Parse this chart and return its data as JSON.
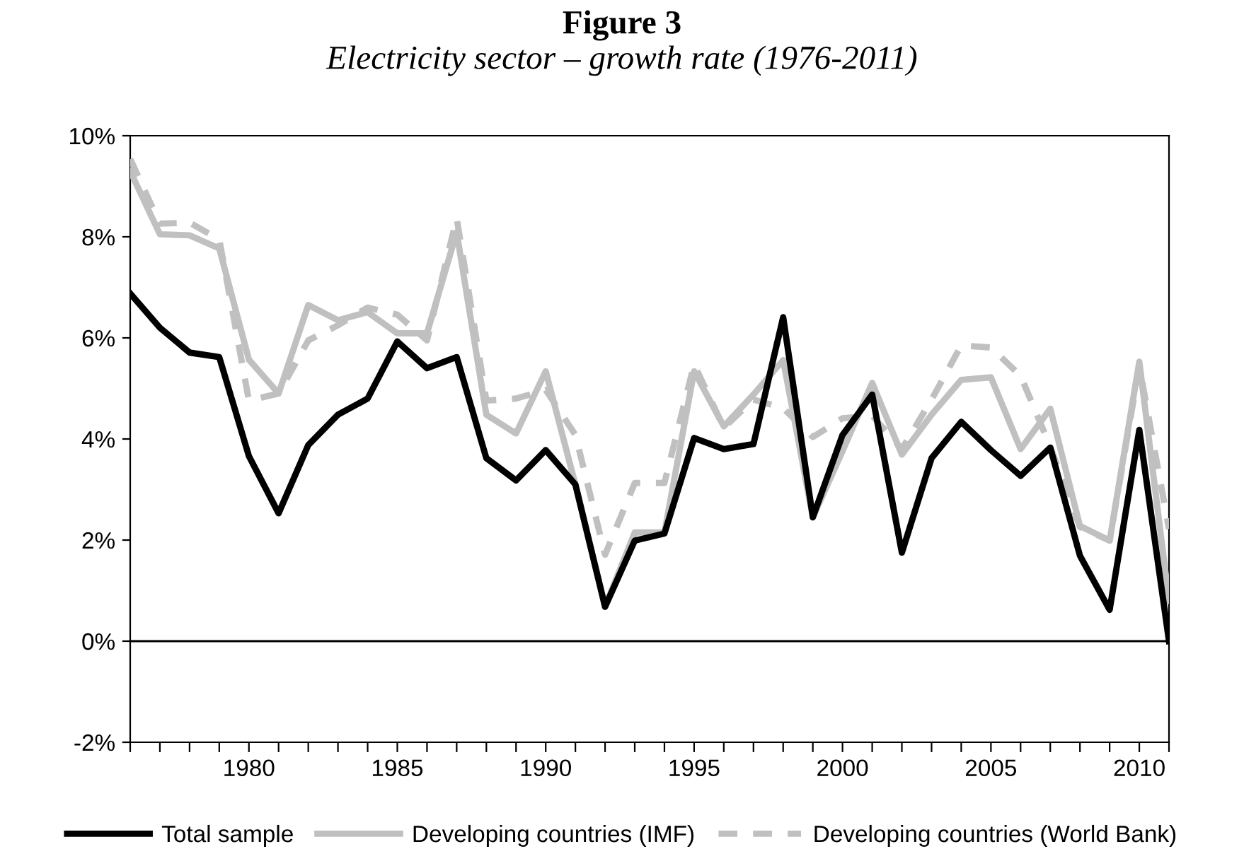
{
  "chart_data": {
    "type": "line",
    "title": "Figure 3",
    "subtitle": "Electricity sector – growth rate (1976-2011)",
    "x": [
      1976,
      1977,
      1978,
      1979,
      1980,
      1981,
      1982,
      1983,
      1984,
      1985,
      1986,
      1987,
      1988,
      1989,
      1990,
      1991,
      1992,
      1993,
      1994,
      1995,
      1996,
      1997,
      1998,
      1999,
      2000,
      2001,
      2002,
      2003,
      2004,
      2005,
      2006,
      2007,
      2008,
      2009,
      2010,
      2011
    ],
    "series": [
      {
        "name": "Total sample",
        "color": "#000000",
        "line_style": "solid",
        "values": [
          6.88,
          6.2,
          5.71,
          5.62,
          3.66,
          2.53,
          3.88,
          4.48,
          4.8,
          5.93,
          5.4,
          5.62,
          3.62,
          3.18,
          3.78,
          3.1,
          0.68,
          1.99,
          2.13,
          4.02,
          3.8,
          3.9,
          6.41,
          2.45,
          4.08,
          4.88,
          1.75,
          3.62,
          4.34,
          3.78,
          3.27,
          3.83,
          1.69,
          0.62,
          4.18,
          0
        ]
      },
      {
        "name": "Developing countries (IMF)",
        "color": "#c0c0c0",
        "line_style": "solid",
        "values": [
          9.3,
          8.05,
          8.03,
          7.77,
          5.57,
          4.9,
          6.65,
          6.35,
          6.51,
          6.09,
          6.09,
          8.09,
          4.48,
          4.11,
          5.34,
          3.1,
          0.68,
          2.15,
          2.15,
          5.34,
          4.25,
          4.88,
          5.56,
          2.45,
          3.76,
          5.11,
          3.69,
          4.48,
          5.17,
          5.22,
          3.8,
          4.6,
          2.28,
          1.99,
          5.53,
          0.8
        ]
      },
      {
        "name": "Developing countries (World Bank)",
        "color": "#c0c0c0",
        "line_style": "dashed",
        "values": [
          9.54,
          8.26,
          8.28,
          7.95,
          4.76,
          4.9,
          5.95,
          6.25,
          6.6,
          6.46,
          5.95,
          8.37,
          4.76,
          4.8,
          4.97,
          4.08,
          1.71,
          3.13,
          3.13,
          5.48,
          4.22,
          4.78,
          4.61,
          4.04,
          4.41,
          4.46,
          3.8,
          4.78,
          5.85,
          5.81,
          5.25,
          3.85,
          2.26,
          1.99,
          5.44,
          2.22
        ]
      }
    ],
    "xlim": [
      1976,
      2011
    ],
    "xticks": [
      {
        "value": 1976,
        "label": null
      },
      {
        "value": 1977,
        "label": null
      },
      {
        "value": 1978,
        "label": null
      },
      {
        "value": 1979,
        "label": null
      },
      1980,
      {
        "value": 1981,
        "label": null
      },
      {
        "value": 1982,
        "label": null
      },
      {
        "value": 1983,
        "label": null
      },
      {
        "value": 1984,
        "label": null
      },
      1985,
      {
        "value": 1986,
        "label": null
      },
      {
        "value": 1987,
        "label": null
      },
      {
        "value": 1988,
        "label": null
      },
      {
        "value": 1989,
        "label": null
      },
      1990,
      {
        "value": 1991,
        "label": null
      },
      {
        "value": 1992,
        "label": null
      },
      {
        "value": 1993,
        "label": null
      },
      {
        "value": 1994,
        "label": null
      },
      1995,
      {
        "value": 1996,
        "label": null
      },
      {
        "value": 1997,
        "label": null
      },
      {
        "value": 1998,
        "label": null
      },
      {
        "value": 1999,
        "label": null
      },
      2000,
      {
        "value": 2001,
        "label": null
      },
      {
        "value": 2002,
        "label": null
      },
      {
        "value": 2003,
        "label": null
      },
      {
        "value": 2004,
        "label": null
      },
      2005,
      {
        "value": 2006,
        "label": null
      },
      {
        "value": 2007,
        "label": null
      },
      {
        "value": 2008,
        "label": null
      },
      {
        "value": 2009,
        "label": null
      },
      2010,
      {
        "value": 2011,
        "label": null
      }
    ],
    "ylim": [
      -2,
      10
    ],
    "yticks": [
      {
        "value": -2,
        "label": "-2%"
      },
      {
        "value": 0,
        "label": "0%"
      },
      {
        "value": 2,
        "label": "2%"
      },
      {
        "value": 4,
        "label": "4%"
      },
      {
        "value": 6,
        "label": "6%"
      },
      {
        "value": 8,
        "label": "8%"
      },
      {
        "value": 10,
        "label": "10%"
      }
    ],
    "ref_lines": [
      {
        "axis": "y",
        "value": 0,
        "color": "#000000",
        "line_style": "solid"
      }
    ],
    "grid": false,
    "legend": "bottom",
    "marker": "none"
  }
}
